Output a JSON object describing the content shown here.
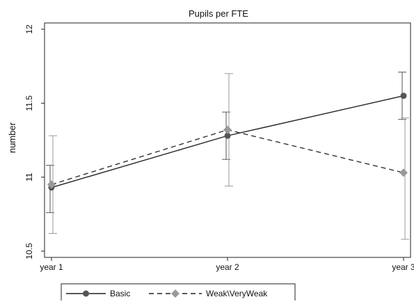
{
  "chart_data": {
    "type": "line",
    "title": "Pupils per FTE",
    "xlabel": "",
    "ylabel": "number",
    "categories": [
      "year 1",
      "year 2",
      "year 3"
    ],
    "ylim": [
      10.5,
      12
    ],
    "yticks": [
      10.5,
      11,
      11.5,
      12
    ],
    "grid": false,
    "legend_position": "bottom",
    "series": [
      {
        "name": "Basic",
        "values": [
          10.93,
          11.28,
          11.55
        ],
        "ci_low": [
          10.76,
          11.12,
          11.39
        ],
        "ci_high": [
          11.08,
          11.44,
          11.71
        ],
        "color": "#555555",
        "line_style": "solid",
        "marker": "circle"
      },
      {
        "name": "Weak\\VeryWeak",
        "values": [
          10.95,
          11.32,
          11.03
        ],
        "ci_low": [
          10.62,
          10.94,
          10.58
        ],
        "ci_high": [
          11.28,
          11.7,
          11.4
        ],
        "color": "#999999",
        "line_style": "dashed",
        "marker": "diamond"
      }
    ]
  }
}
